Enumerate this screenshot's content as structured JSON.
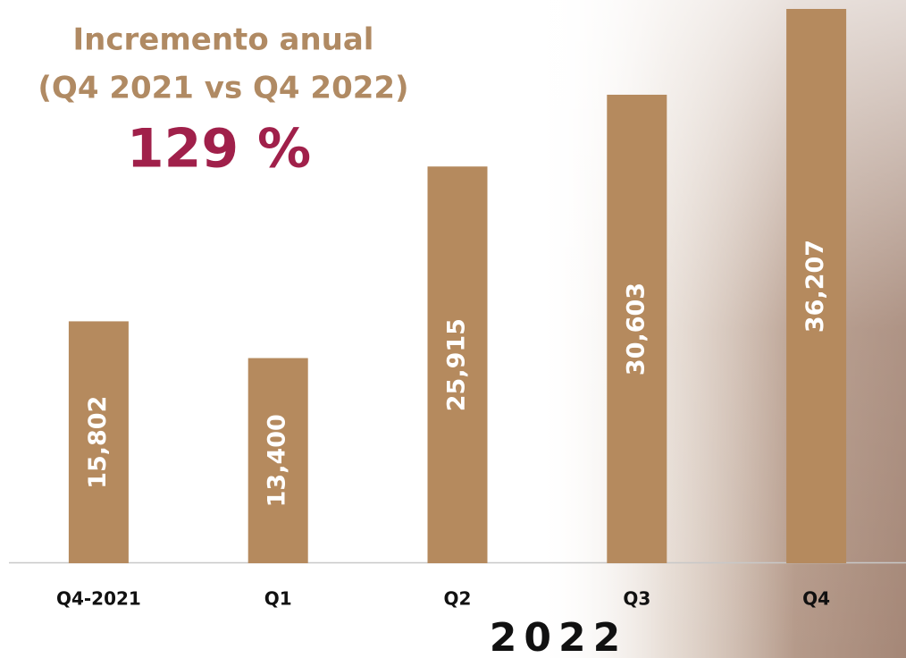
{
  "chart_data": {
    "type": "bar",
    "title_lines": [
      "Incremento anual",
      "(Q4 2021 vs Q4 2022)"
    ],
    "annotation": "129 %",
    "group_label": "2022",
    "categories": [
      "Q4-2021",
      "Q1",
      "Q2",
      "Q3",
      "Q4"
    ],
    "values": [
      15802,
      13400,
      25915,
      30603,
      36207
    ],
    "value_labels": [
      "15,802",
      "13,400",
      "25,915",
      "30,603",
      "36,207"
    ],
    "color": "#b58a5e"
  }
}
